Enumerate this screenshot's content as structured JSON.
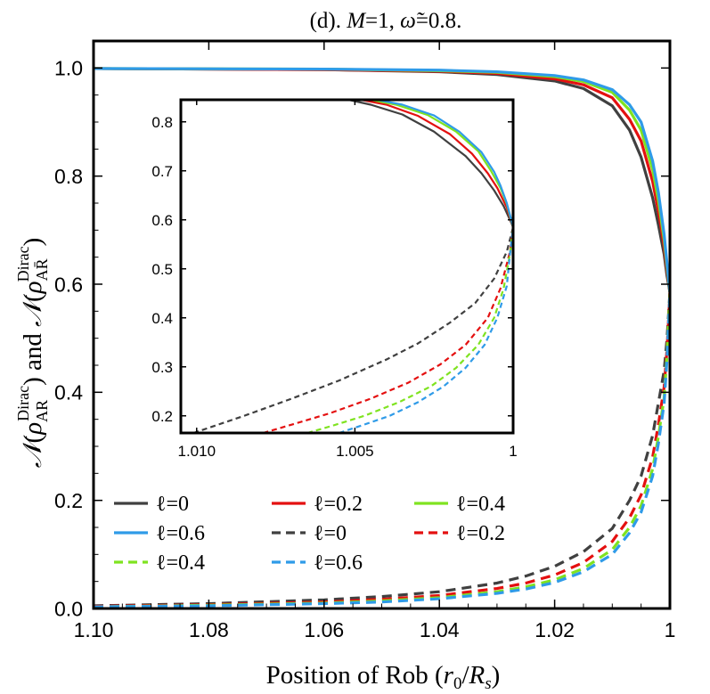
{
  "chart_data": {
    "type": "line",
    "title": "(d). M=1, ω̃=0.8.",
    "title_parts": {
      "prefix": "(d). ",
      "m_sym": "M",
      "m_val": "=1, ",
      "w_sym": "ω̃",
      "w_val": "=0.8."
    },
    "xlabel": "Position of Rob (r0/Rs)",
    "xlabel_parts": {
      "text": "Position of Rob (",
      "r": "r",
      "r_sub": "0",
      "slash": "/",
      "R": "R",
      "R_sub": "s",
      "close": ")"
    },
    "ylabel": "N(ρ_AR^Dirac) and N(ρ_AR̄^Dirac)",
    "ylabel_parts": {
      "N": "𝒩",
      "open": "(",
      "rho": "ρ",
      "sub": "AR",
      "subbar": "AR̄",
      "sup": "Dirac",
      "close": ")",
      "and": " and "
    },
    "xlim": [
      1.1,
      1.0
    ],
    "ylim": [
      0.0,
      1.05
    ],
    "x_ticks": [
      "1.10",
      "1.08",
      "1.06",
      "1.04",
      "1.02",
      "1"
    ],
    "y_ticks": [
      "0.0",
      "0.2",
      "0.4",
      "0.6",
      "0.8",
      "1.0"
    ],
    "colors": {
      "l0": "#404040",
      "l02": "#e41010",
      "l04": "#7fe320",
      "l06": "#2f9be8"
    },
    "legend_placement": "bottom-left",
    "legend": [
      {
        "label": "ℓ=0",
        "color": "#404040",
        "dashed": false
      },
      {
        "label": "ℓ=0.2",
        "color": "#e41010",
        "dashed": false
      },
      {
        "label": "ℓ=0.4",
        "color": "#7fe320",
        "dashed": false
      },
      {
        "label": "ℓ=0.6",
        "color": "#2f9be8",
        "dashed": false
      },
      {
        "label": "ℓ=0",
        "color": "#404040",
        "dashed": true
      },
      {
        "label": "ℓ=0.2",
        "color": "#e41010",
        "dashed": true
      },
      {
        "label": "ℓ=0.4",
        "color": "#7fe320",
        "dashed": true
      },
      {
        "label": "ℓ=0.6",
        "color": "#2f9be8",
        "dashed": true
      }
    ],
    "series": [
      {
        "name": "ℓ=0",
        "style": "solid",
        "color": "#404040",
        "x": [
          1.1,
          1.06,
          1.04,
          1.03,
          1.02,
          1.015,
          1.01,
          1.007,
          1.005,
          1.003,
          1.002,
          1.001,
          1.0005,
          1.0
        ],
        "y": [
          0.999,
          0.997,
          0.993,
          0.988,
          0.976,
          0.962,
          0.93,
          0.885,
          0.835,
          0.76,
          0.71,
          0.655,
          0.615,
          0.585
        ]
      },
      {
        "name": "ℓ=0.2",
        "style": "solid",
        "color": "#e41010",
        "x": [
          1.1,
          1.06,
          1.04,
          1.03,
          1.02,
          1.015,
          1.01,
          1.007,
          1.005,
          1.003,
          1.002,
          1.001,
          1.0005,
          1.0
        ],
        "y": [
          0.999,
          0.997,
          0.994,
          0.99,
          0.98,
          0.969,
          0.945,
          0.905,
          0.865,
          0.79,
          0.735,
          0.67,
          0.625,
          0.585
        ]
      },
      {
        "name": "ℓ=0.4",
        "style": "solid",
        "color": "#7fe320",
        "x": [
          1.1,
          1.06,
          1.04,
          1.03,
          1.02,
          1.015,
          1.01,
          1.007,
          1.005,
          1.003,
          1.002,
          1.001,
          1.0005,
          1.0
        ],
        "y": [
          0.999,
          0.998,
          0.995,
          0.992,
          0.984,
          0.975,
          0.955,
          0.922,
          0.885,
          0.812,
          0.755,
          0.682,
          0.632,
          0.585
        ]
      },
      {
        "name": "ℓ=0.6",
        "style": "solid",
        "color": "#2f9be8",
        "x": [
          1.1,
          1.06,
          1.04,
          1.03,
          1.02,
          1.015,
          1.01,
          1.007,
          1.005,
          1.003,
          1.002,
          1.001,
          1.0005,
          1.0
        ],
        "y": [
          0.999,
          0.998,
          0.996,
          0.993,
          0.986,
          0.978,
          0.96,
          0.932,
          0.9,
          0.828,
          0.77,
          0.692,
          0.638,
          0.585
        ]
      },
      {
        "name": "ℓ=0",
        "style": "dashed",
        "color": "#404040",
        "x": [
          1.1,
          1.08,
          1.06,
          1.05,
          1.04,
          1.03,
          1.025,
          1.02,
          1.015,
          1.01,
          1.007,
          1.005,
          1.003,
          1.002,
          1.001,
          1.0005,
          1.0
        ],
        "y": [
          0.005,
          0.009,
          0.016,
          0.022,
          0.031,
          0.047,
          0.06,
          0.078,
          0.105,
          0.148,
          0.2,
          0.245,
          0.32,
          0.38,
          0.44,
          0.5,
          0.585
        ]
      },
      {
        "name": "ℓ=0.2",
        "style": "dashed",
        "color": "#e41010",
        "x": [
          1.1,
          1.08,
          1.06,
          1.05,
          1.04,
          1.03,
          1.025,
          1.02,
          1.015,
          1.01,
          1.007,
          1.005,
          1.003,
          1.002,
          1.001,
          1.0005,
          1.0
        ],
        "y": [
          0.004,
          0.007,
          0.012,
          0.017,
          0.024,
          0.037,
          0.047,
          0.062,
          0.085,
          0.124,
          0.168,
          0.21,
          0.28,
          0.34,
          0.41,
          0.48,
          0.585
        ]
      },
      {
        "name": "ℓ=0.4",
        "style": "dashed",
        "color": "#7fe320",
        "x": [
          1.1,
          1.08,
          1.06,
          1.05,
          1.04,
          1.03,
          1.025,
          1.02,
          1.015,
          1.01,
          1.007,
          1.005,
          1.003,
          1.002,
          1.001,
          1.0005,
          1.0
        ],
        "y": [
          0.003,
          0.006,
          0.01,
          0.014,
          0.02,
          0.031,
          0.04,
          0.053,
          0.074,
          0.109,
          0.15,
          0.19,
          0.258,
          0.318,
          0.39,
          0.47,
          0.585
        ]
      },
      {
        "name": "ℓ=0.6",
        "style": "dashed",
        "color": "#2f9be8",
        "x": [
          1.1,
          1.08,
          1.06,
          1.05,
          1.04,
          1.03,
          1.025,
          1.02,
          1.015,
          1.01,
          1.007,
          1.005,
          1.003,
          1.002,
          1.001,
          1.0005,
          1.0
        ],
        "y": [
          0.003,
          0.005,
          0.009,
          0.012,
          0.018,
          0.028,
          0.036,
          0.048,
          0.068,
          0.1,
          0.14,
          0.178,
          0.245,
          0.305,
          0.38,
          0.462,
          0.585
        ]
      }
    ],
    "inset": {
      "xlim": [
        1.0105,
        1.0
      ],
      "ylim": [
        0.165,
        0.845
      ],
      "x_ticks": [
        "1.010",
        "1.005",
        "1"
      ],
      "y_ticks": [
        "0.2",
        "0.3",
        "0.4",
        "0.5",
        "0.6",
        "0.7",
        "0.8"
      ],
      "series": [
        {
          "name": "ℓ=0",
          "style": "solid",
          "color": "#404040",
          "x": [
            1.0052,
            1.0045,
            1.0035,
            1.0025,
            1.0015,
            1.001,
            1.0006,
            1.0003,
            1.0001,
            1.0
          ],
          "y": [
            0.845,
            0.835,
            0.815,
            0.78,
            0.73,
            0.695,
            0.66,
            0.628,
            0.6,
            0.585
          ]
        },
        {
          "name": "ℓ=0.2",
          "style": "solid",
          "color": "#e41010",
          "x": [
            1.0048,
            1.004,
            1.003,
            1.002,
            1.0013,
            1.0008,
            1.0005,
            1.0002,
            1.0001,
            1.0
          ],
          "y": [
            0.845,
            0.835,
            0.812,
            0.775,
            0.735,
            0.695,
            0.665,
            0.625,
            0.605,
            0.585
          ]
        },
        {
          "name": "ℓ=0.4",
          "style": "solid",
          "color": "#7fe320",
          "x": [
            1.0045,
            1.0037,
            1.0027,
            1.0018,
            1.0011,
            1.0007,
            1.0004,
            1.0002,
            1.0001,
            1.0
          ],
          "y": [
            0.845,
            0.835,
            0.814,
            0.78,
            0.74,
            0.7,
            0.665,
            0.632,
            0.608,
            0.585
          ]
        },
        {
          "name": "ℓ=0.6",
          "style": "solid",
          "color": "#2f9be8",
          "x": [
            1.0043,
            1.0035,
            1.0025,
            1.0017,
            1.001,
            1.0006,
            1.0004,
            1.0002,
            1.0001,
            1.0
          ],
          "y": [
            0.845,
            0.835,
            0.813,
            0.78,
            0.738,
            0.698,
            0.67,
            0.634,
            0.61,
            0.585
          ]
        },
        {
          "name": "ℓ=0",
          "style": "dashed",
          "color": "#404040",
          "x": [
            1.0101,
            1.0085,
            1.007,
            1.0055,
            1.004,
            1.003,
            1.002,
            1.0012,
            1.0006,
            1.0002,
            1.0
          ],
          "y": [
            0.165,
            0.2,
            0.235,
            0.272,
            0.315,
            0.348,
            0.39,
            0.43,
            0.48,
            0.535,
            0.585
          ]
        },
        {
          "name": "ℓ=0.2",
          "style": "dashed",
          "color": "#e41010",
          "x": [
            1.0079,
            1.007,
            1.0058,
            1.0045,
            1.0033,
            1.0023,
            1.0015,
            1.0008,
            1.0004,
            1.0001,
            1.0
          ],
          "y": [
            0.165,
            0.182,
            0.205,
            0.235,
            0.268,
            0.305,
            0.345,
            0.4,
            0.46,
            0.535,
            0.585
          ]
        },
        {
          "name": "ℓ=0.4",
          "style": "dashed",
          "color": "#7fe320",
          "x": [
            1.0065,
            1.0057,
            1.0047,
            1.0036,
            1.0026,
            1.0018,
            1.0011,
            1.0006,
            1.0003,
            1.0001,
            1.0
          ],
          "y": [
            0.165,
            0.18,
            0.2,
            0.228,
            0.26,
            0.298,
            0.345,
            0.4,
            0.46,
            0.53,
            0.585
          ]
        },
        {
          "name": "ℓ=0.6",
          "style": "dashed",
          "color": "#2f9be8",
          "x": [
            1.0055,
            1.0048,
            1.0039,
            1.003,
            1.0022,
            1.0015,
            1.0009,
            1.0005,
            1.0002,
            1.0001,
            1.0
          ],
          "y": [
            0.165,
            0.18,
            0.2,
            0.228,
            0.26,
            0.298,
            0.345,
            0.4,
            0.465,
            0.53,
            0.585
          ]
        }
      ]
    }
  }
}
